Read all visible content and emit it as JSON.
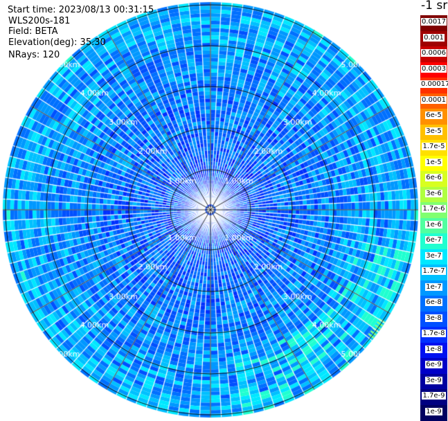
{
  "header": {
    "start_time": "Start time: 2023/08/13 00:31:15",
    "radar": "WLS200s-181",
    "field": "Field: BETA",
    "elevation": "Elevation(deg): 35.30",
    "nrays": "NRays: 120"
  },
  "colorbar": {
    "units": "-1 sr",
    "labels": [
      "0.0017",
      "0.001",
      "0.0006",
      "0.0003",
      "0.00017",
      "0.0001",
      "6e-5",
      "3e-5",
      "1.7e-5",
      "1e-5",
      "6e-6",
      "3e-6",
      "1.7e-6",
      "1e-6",
      "6e-7",
      "3e-7",
      "1.7e-7",
      "1e-7",
      "6e-8",
      "3e-8",
      "1.7e-8",
      "1e-8",
      "6e-9",
      "3e-9",
      "1.7e-9",
      "1e-9"
    ],
    "colors": [
      "#800000",
      "#a00000",
      "#c80000",
      "#ff0000",
      "#ff3000",
      "#ff6000",
      "#ff9000",
      "#ffc000",
      "#ffe000",
      "#ffff00",
      "#d8ff20",
      "#b0ff40",
      "#80ff70",
      "#50ffa0",
      "#20ffd0",
      "#00e8ff",
      "#00c0ff",
      "#0098ff",
      "#0070ff",
      "#0050ff",
      "#0030ff",
      "#0010f0",
      "#0000c8",
      "#0000a0",
      "#000080",
      "#000060"
    ]
  },
  "range_rings": {
    "labels": [
      "1.00km",
      "2.00km",
      "3.00km",
      "4.00km",
      "5.00km"
    ]
  }
}
